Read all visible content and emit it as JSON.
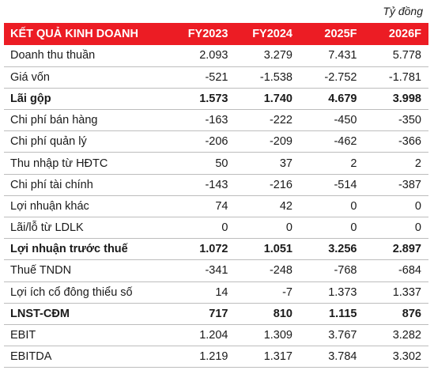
{
  "unit_note": "Tỷ đồng",
  "table": {
    "title": "KẾT QUẢ KINH DOANH",
    "columns": [
      "FY2023",
      "FY2024",
      "2025F",
      "2026F"
    ],
    "rows": [
      {
        "label": "Doanh thu thuần",
        "values": [
          "2.093",
          "3.279",
          "7.431",
          "5.778"
        ]
      },
      {
        "label": "Giá vốn",
        "values": [
          "-521",
          "-1.538",
          "-2.752",
          "-1.781"
        ]
      },
      {
        "label": "Lãi gộp",
        "values": [
          "1.573",
          "1.740",
          "4.679",
          "3.998"
        ]
      },
      {
        "label": "Chi phí bán hàng",
        "values": [
          "-163",
          "-222",
          "-450",
          "-350"
        ]
      },
      {
        "label": "Chi phí quản lý",
        "values": [
          "-206",
          "-209",
          "-462",
          "-366"
        ]
      },
      {
        "label": "Thu nhập từ HĐTC",
        "values": [
          "50",
          "37",
          "2",
          "2"
        ]
      },
      {
        "label": "Chi phí tài chính",
        "values": [
          "-143",
          "-216",
          "-514",
          "-387"
        ]
      },
      {
        "label": "Lợi nhuận khác",
        "values": [
          "74",
          "42",
          "0",
          "0"
        ]
      },
      {
        "label": "Lãi/lỗ từ LDLK",
        "values": [
          "0",
          "0",
          "0",
          "0"
        ]
      },
      {
        "label": "Lợi nhuận trước thuế",
        "values": [
          "1.072",
          "1.051",
          "3.256",
          "2.897"
        ]
      },
      {
        "label": "Thuế TNDN",
        "values": [
          "-341",
          "-248",
          "-768",
          "-684"
        ]
      },
      {
        "label": "Lợi ích cổ đông thiểu số",
        "values": [
          "14",
          "-7",
          "1.373",
          "1.337"
        ]
      },
      {
        "label": "LNST-CĐM",
        "values": [
          "717",
          "810",
          "1.115",
          "876"
        ]
      },
      {
        "label": "EBIT",
        "values": [
          "1.204",
          "1.309",
          "3.767",
          "3.282"
        ]
      },
      {
        "label": "EBITDA",
        "values": [
          "1.219",
          "1.317",
          "3.784",
          "3.302"
        ]
      }
    ]
  }
}
